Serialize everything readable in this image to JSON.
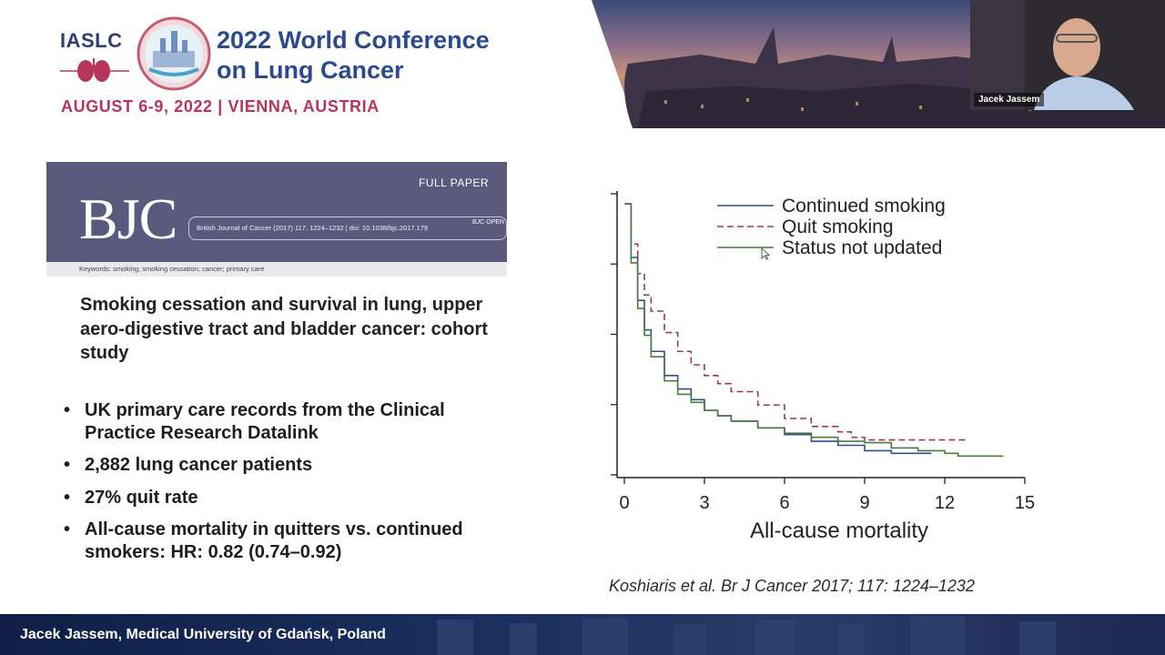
{
  "header": {
    "org": "IASLC",
    "conference_title_line1": "2022 World Conference",
    "conference_title_line2": "on Lung Cancer",
    "date_location": "AUGUST 6-9, 2022 | VIENNA, AUSTRIA"
  },
  "video": {
    "participant_name": "Jacek Jassem"
  },
  "journal": {
    "logo": "BJC",
    "label": "FULL PAPER",
    "citation": "British Journal of Cancer (2017) 117, 1224–1232 | doi: 10.1038/bjc.2017.179",
    "open_badge": "BJC OPEN",
    "keywords": "Keywords: smoking; smoking cessation; cancer; primary care"
  },
  "paper_title": "Smoking cessation and survival in lung, upper aero-digestive tract and bladder cancer: cohort study",
  "bullets": [
    "UK primary care records from the Clinical Practice Research Datalink",
    "2,882 lung cancer patients",
    "27% quit rate",
    "All-cause mortality in quitters vs. continued smokers: HR: 0.82 (0.74–0.92)"
  ],
  "chart_data": {
    "type": "line",
    "xlabel": "All-cause mortality",
    "ylabel": "",
    "xlim": [
      0,
      15
    ],
    "x_ticks": [
      0,
      3,
      6,
      9,
      12,
      15
    ],
    "ylim": [
      0,
      1
    ],
    "y_tick_count": 5,
    "legend_position": "top-right",
    "series": [
      {
        "name": "Continued smoking",
        "color": "#2f4f8f",
        "style": "solid",
        "x": [
          0,
          0.25,
          0.5,
          0.75,
          1,
          1.5,
          2,
          2.5,
          3,
          3.5,
          4,
          5,
          6,
          7,
          8,
          9,
          10,
          11,
          11.5
        ],
        "y": [
          1.0,
          0.8,
          0.64,
          0.53,
          0.45,
          0.36,
          0.31,
          0.27,
          0.23,
          0.21,
          0.19,
          0.165,
          0.14,
          0.115,
          0.1,
          0.08,
          0.07,
          0.07,
          0.07
        ]
      },
      {
        "name": "Quit smoking",
        "color": "#9b3a55",
        "style": "dashed",
        "x": [
          0,
          0.25,
          0.5,
          0.75,
          1,
          1.5,
          2,
          2.5,
          3,
          3.5,
          4,
          5,
          6,
          7,
          8,
          8.5,
          9,
          10,
          11,
          12,
          12.8
        ],
        "y": [
          1.0,
          0.85,
          0.74,
          0.66,
          0.6,
          0.52,
          0.45,
          0.4,
          0.36,
          0.33,
          0.3,
          0.25,
          0.2,
          0.17,
          0.15,
          0.13,
          0.12,
          0.12,
          0.12,
          0.12,
          0.12
        ]
      },
      {
        "name": "Status not updated",
        "color": "#4a7a3f",
        "style": "solid",
        "x": [
          0,
          0.25,
          0.5,
          0.75,
          1,
          1.5,
          2,
          2.5,
          3,
          3.5,
          4,
          5,
          6,
          7,
          8,
          9,
          10,
          11,
          12,
          12.5,
          13,
          14.2
        ],
        "y": [
          1.0,
          0.78,
          0.61,
          0.51,
          0.43,
          0.34,
          0.29,
          0.26,
          0.23,
          0.21,
          0.19,
          0.165,
          0.145,
          0.13,
          0.115,
          0.11,
          0.09,
          0.08,
          0.07,
          0.06,
          0.06,
          0.06
        ]
      }
    ]
  },
  "citation": "Koshiaris et al. Br J Cancer 2017; 117: 1224–1232",
  "footer": {
    "presenter": "Jacek Jassem, Medical University of Gdańsk, Poland"
  },
  "colors": {
    "header_blue": "#2a4a8e",
    "date_red": "#b5365a",
    "bjc_banner": "#5a5a7e",
    "footer_navy": "#1a2f5e"
  }
}
